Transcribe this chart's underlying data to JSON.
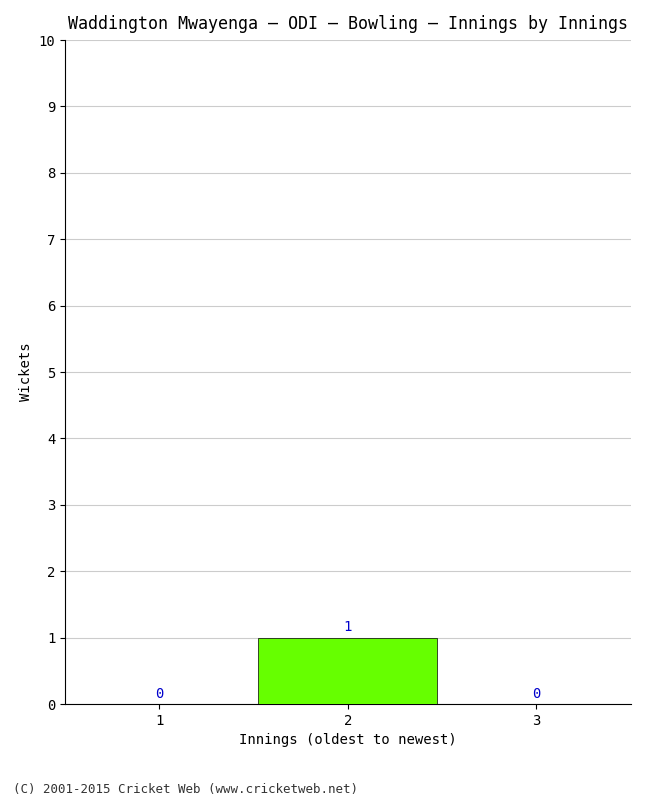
{
  "title": "Waddington Mwayenga – ODI – Bowling – Innings by Innings",
  "xlabel": "Innings (oldest to newest)",
  "ylabel": "Wickets",
  "innings": [
    1,
    2,
    3
  ],
  "wickets": [
    0,
    1,
    0
  ],
  "bar_color": "#66ff00",
  "ylim": [
    0,
    10
  ],
  "yticks": [
    0,
    1,
    2,
    3,
    4,
    5,
    6,
    7,
    8,
    9,
    10
  ],
  "xticks": [
    1,
    2,
    3
  ],
  "xlim": [
    0.5,
    3.5
  ],
  "background_color": "#ffffff",
  "grid_color": "#cccccc",
  "title_fontsize": 12,
  "axis_label_fontsize": 10,
  "tick_fontsize": 10,
  "annotation_fontsize": 10,
  "annotation_color": "#0000cc",
  "footer_text": "(C) 2001-2015 Cricket Web (www.cricketweb.net)",
  "footer_fontsize": 9,
  "bar_width": 0.95
}
